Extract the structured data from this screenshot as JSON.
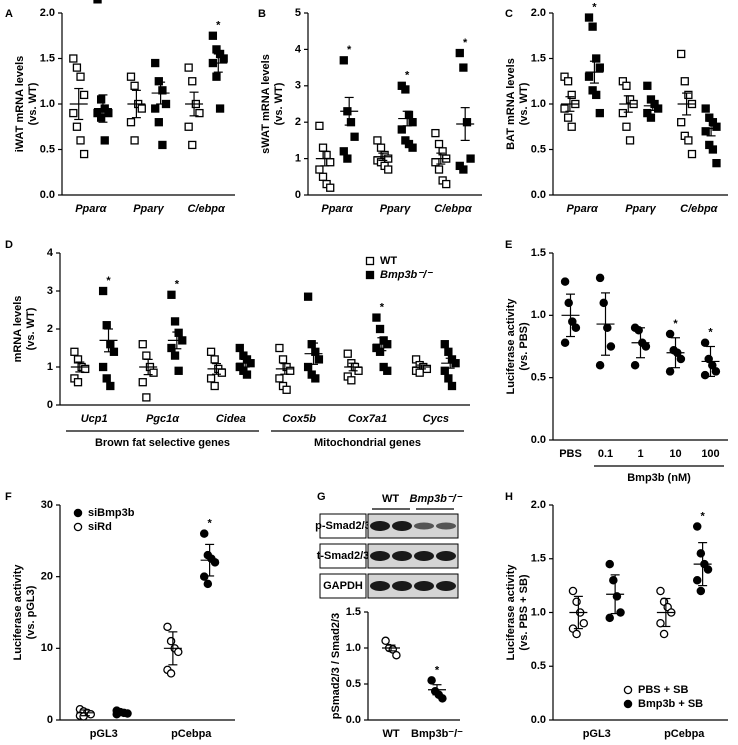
{
  "chart_data": [
    {
      "type": "dot",
      "panel": "A",
      "ylabel": "iWAT mRNA levels",
      "ylabel_sub": "(vs. WT)",
      "categories": [
        "Pparα",
        "Pparγ",
        "C/ebpα"
      ],
      "ylim": [
        0,
        2.0
      ],
      "yticks": [
        {
          "value": 0,
          "label": "0.0"
        },
        0.5,
        {
          "value": 1,
          "label": "1.0"
        },
        1.5,
        {
          "value": 2,
          "label": "2.0"
        }
      ],
      "series": [
        {
          "marker": "square-open",
          "color": "#000000",
          "values": [
            [
              1.5,
              1.4,
              1.3,
              1.1,
              0.9,
              0.75,
              0.6,
              0.45
            ],
            [
              1.3,
              1.2,
              1.0,
              0.95,
              0.8,
              0.6
            ],
            [
              1.4,
              1.25,
              1.0,
              0.9,
              0.75,
              0.55
            ]
          ],
          "means": [
            1.0,
            1.0,
            1.0
          ],
          "errors": [
            0.17,
            0.15,
            0.13
          ],
          "annotations": [
            null,
            null,
            null
          ]
        },
        {
          "marker": "square-filled",
          "color": "#000000",
          "values": [
            [
              2.15,
              1.05,
              0.95,
              0.9,
              0.9,
              0.85,
              0.6
            ],
            [
              1.45,
              1.25,
              1.15,
              1.0,
              0.95,
              0.8,
              0.55
            ],
            [
              1.75,
              1.6,
              1.55,
              1.5,
              1.45,
              1.3,
              0.95
            ]
          ],
          "means": [
            0.95,
            1.12,
            1.45
          ],
          "errors": [
            0.15,
            0.12,
            0.1
          ],
          "annotations": [
            null,
            null,
            "*"
          ]
        }
      ]
    },
    {
      "type": "dot",
      "panel": "B",
      "ylabel": "sWAT mRNA levels",
      "ylabel_sub": "(vs. WT)",
      "categories": [
        "Pparα",
        "Pparγ",
        "C/ebpα"
      ],
      "ylim": [
        0,
        5
      ],
      "yticks": [
        0,
        1,
        2,
        3,
        4,
        5
      ],
      "series": [
        {
          "marker": "square-open",
          "color": "#000000",
          "values": [
            [
              1.9,
              1.3,
              1.1,
              0.9,
              0.7,
              0.5,
              0.3,
              0.2
            ],
            [
              1.5,
              1.3,
              1.1,
              1.0,
              0.95,
              0.9,
              0.8,
              0.7
            ],
            [
              1.7,
              1.4,
              1.2,
              1.0,
              0.9,
              0.7,
              0.4,
              0.3
            ]
          ],
          "means": [
            1.0,
            1.05,
            1.0
          ],
          "errors": [
            0.2,
            0.1,
            0.15
          ],
          "annotations": [
            null,
            null,
            null
          ]
        },
        {
          "marker": "square-filled",
          "color": "#000000",
          "values": [
            [
              3.7,
              2.3,
              2.0,
              1.6,
              1.2,
              1.0
            ],
            [
              3.0,
              2.9,
              2.2,
              2.0,
              1.8,
              1.5,
              1.4,
              1.3
            ],
            [
              3.9,
              3.5,
              2.0,
              1.0,
              0.8,
              0.7
            ]
          ],
          "means": [
            2.3,
            2.1,
            1.95
          ],
          "errors": [
            0.38,
            0.2,
            0.45
          ],
          "annotations": [
            "*",
            "*",
            "*"
          ]
        }
      ]
    },
    {
      "type": "dot",
      "panel": "C",
      "ylabel": "BAT mRNA levels",
      "ylabel_sub": "(vs. WT)",
      "categories": [
        "Pparα",
        "Pparγ",
        "C/ebpα"
      ],
      "ylim": [
        0,
        2.0
      ],
      "yticks": [
        {
          "value": 0,
          "label": "0.0"
        },
        0.5,
        {
          "value": 1,
          "label": "1.0"
        },
        1.5,
        {
          "value": 2,
          "label": "2.0"
        }
      ],
      "series": [
        {
          "marker": "square-open",
          "color": "#000000",
          "values": [
            [
              1.3,
              1.25,
              1.1,
              1.0,
              0.95,
              0.85,
              0.75
            ],
            [
              1.25,
              1.2,
              1.05,
              1.0,
              0.9,
              0.75,
              0.6
            ],
            [
              1.55,
              1.25,
              1.1,
              1.0,
              0.8,
              0.65,
              0.6,
              0.45
            ]
          ],
          "means": [
            1.0,
            1.0,
            1.0
          ],
          "errors": [
            0.08,
            0.09,
            0.12
          ],
          "annotations": [
            null,
            null,
            null
          ]
        },
        {
          "marker": "square-filled",
          "color": "#000000",
          "values": [
            [
              1.95,
              1.85,
              1.5,
              1.4,
              1.3,
              1.15,
              1.1,
              0.9
            ],
            [
              1.2,
              1.05,
              1.0,
              0.95,
              0.9,
              0.85
            ],
            [
              0.95,
              0.85,
              0.8,
              0.75,
              0.7,
              0.55,
              0.5,
              0.35
            ]
          ],
          "means": [
            1.35,
            0.98,
            0.73
          ],
          "errors": [
            0.12,
            0.05,
            0.08
          ],
          "annotations": [
            "*",
            null,
            null
          ]
        }
      ]
    },
    {
      "type": "dot",
      "panel": "D",
      "ylabel": "mRNA levels",
      "ylabel_sub": "(vs. WT)",
      "categories": [
        "Ucp1",
        "Pgc1α",
        "Cidea",
        "Cox5b",
        "Cox7a1",
        "Cycs"
      ],
      "ylim": [
        0,
        4
      ],
      "yticks": [
        0,
        1,
        2,
        3,
        4
      ],
      "groups": [
        {
          "label": "Brown fat selective genes",
          "size": 3
        },
        {
          "label": "Mitochondrial genes",
          "size": 3
        }
      ],
      "legend": "upper right",
      "series": [
        {
          "name": "WT",
          "marker": "square-open",
          "color": "#000000",
          "values": [
            [
              1.4,
              1.2,
              1.0,
              0.95,
              0.7,
              0.6
            ],
            [
              1.6,
              1.3,
              1.0,
              0.85,
              0.6,
              0.2
            ],
            [
              1.4,
              1.2,
              0.95,
              0.85,
              0.7,
              0.5
            ],
            [
              1.5,
              1.2,
              1.0,
              0.9,
              0.7,
              0.5,
              0.4
            ],
            [
              1.35,
              1.1,
              1.0,
              0.9,
              0.75,
              0.65
            ],
            [
              1.2,
              1.05,
              1.0,
              0.95,
              0.9,
              0.85
            ]
          ],
          "means": [
            1.0,
            1.0,
            0.95,
            0.95,
            1.0,
            1.0
          ],
          "errors": [
            0.13,
            0.2,
            0.14,
            0.14,
            0.1,
            0.05
          ],
          "annotations": [
            null,
            null,
            null,
            null,
            null,
            null
          ]
        },
        {
          "name": "Bmp3b⁻/⁻",
          "marker": "square-filled",
          "color": "#000000",
          "values": [
            [
              3.0,
              2.1,
              1.6,
              1.4,
              1.0,
              0.7,
              0.5
            ],
            [
              2.9,
              2.2,
              1.9,
              1.7,
              1.5,
              1.3,
              0.9
            ],
            [
              1.5,
              1.3,
              1.2,
              1.1,
              1.0,
              0.9,
              0.8
            ],
            [
              2.85,
              1.6,
              1.4,
              1.2,
              1.0,
              0.8,
              0.7
            ],
            [
              2.3,
              2.0,
              1.7,
              1.6,
              1.5,
              1.4,
              1.0,
              0.9
            ],
            [
              1.6,
              1.4,
              1.2,
              1.1,
              0.9,
              0.7,
              0.5
            ]
          ],
          "means": [
            1.7,
            1.7,
            1.1,
            1.35,
            1.6,
            1.1
          ],
          "errors": [
            0.3,
            0.22,
            0.1,
            0.28,
            0.17,
            0.13
          ],
          "annotations": [
            "*",
            "*",
            null,
            null,
            "*",
            null
          ]
        }
      ]
    },
    {
      "type": "dot",
      "panel": "E",
      "ylabel": "Luciferase activity",
      "ylabel_sub": "(vs. PBS)",
      "categories": [
        "PBS",
        "0.1",
        "1",
        "10",
        "100"
      ],
      "xlabel": "Bmp3b (nM)",
      "ylim": [
        0,
        1.5
      ],
      "yticks": [
        {
          "value": 0,
          "label": "0.0"
        },
        0.5,
        {
          "value": 1,
          "label": "1.0"
        },
        1.5
      ],
      "series": [
        {
          "marker": "circle-filled",
          "color": "#000000",
          "values": [
            [
              1.27,
              1.1,
              0.95,
              0.9,
              0.78
            ],
            [
              1.3,
              1.1,
              0.9,
              0.75,
              0.6
            ],
            [
              0.9,
              0.88,
              0.78,
              0.75,
              0.6
            ],
            [
              0.85,
              0.72,
              0.7,
              0.65,
              0.55
            ],
            [
              0.78,
              0.65,
              0.6,
              0.55,
              0.52
            ]
          ],
          "means": [
            1.0,
            0.93,
            0.78,
            0.7,
            0.63
          ],
          "errors": [
            0.17,
            0.25,
            0.12,
            0.12,
            0.12
          ],
          "annotations": [
            null,
            null,
            null,
            "*",
            "*"
          ]
        }
      ]
    },
    {
      "type": "dot",
      "panel": "F",
      "ylabel": "Luciferase activity",
      "ylabel_sub": "(vs. pGL3)",
      "categories": [
        "pGL3",
        "pCebpa"
      ],
      "ylim": [
        0,
        30
      ],
      "yticks": [
        0,
        10,
        20,
        30
      ],
      "legend": "upper left",
      "series": [
        {
          "name": "siRd",
          "marker": "circle-open",
          "color": "#000000",
          "values": [
            [
              1.5,
              1.2,
              1.0,
              0.8,
              0.6,
              0.5
            ],
            [
              13,
              11,
              10,
              9.5,
              7,
              6.5
            ]
          ],
          "means": [
            1.0,
            10
          ],
          "errors": [
            0.4,
            2.3
          ],
          "annotations": [
            null,
            null
          ]
        },
        {
          "name": "siBmp3b",
          "marker": "circle-filled",
          "color": "#000000",
          "values": [
            [
              1.3,
              1.1,
              1.0,
              0.9,
              0.8
            ],
            [
              26,
              23,
              22.5,
              22,
              20,
              19
            ]
          ],
          "means": [
            1.0,
            22.3
          ],
          "errors": [
            0.2,
            2.2
          ],
          "annotations": [
            null,
            "*"
          ]
        }
      ]
    },
    {
      "type": "dot",
      "panel": "G",
      "ylabel": "pSmad2/3 / Smad2/3",
      "blot": {
        "columns": [
          "WT",
          "Bmp3b⁻/⁻"
        ],
        "rows": [
          "p-Smad2/3",
          "t-Smad2/3",
          "GAPDH"
        ]
      },
      "categories": [
        "WT",
        "Bmp3b⁻/⁻"
      ],
      "ylim": [
        0,
        1.5
      ],
      "yticks": [
        {
          "value": 0,
          "label": "0.0"
        },
        0.5,
        {
          "value": 1,
          "label": "1.0"
        },
        1.5
      ],
      "series": [
        {
          "markers": [
            "circle-open",
            "circle-filled"
          ],
          "color": "#000000",
          "values": [
            [
              1.1,
              1.0,
              0.98,
              0.9
            ],
            [
              0.55,
              0.4,
              0.35,
              0.3
            ]
          ],
          "means": [
            1.0,
            0.42
          ],
          "errors": [
            0.04,
            0.07
          ],
          "annotations": [
            null,
            "*"
          ]
        }
      ]
    },
    {
      "type": "dot",
      "panel": "H",
      "ylabel": "Luciferase activity",
      "ylabel_sub": "(vs. PBS + SB)",
      "categories": [
        "pGL3",
        "pCebpa"
      ],
      "ylim": [
        0,
        2.0
      ],
      "legend": "lower right",
      "yticks": [
        {
          "value": 0,
          "label": "0.0"
        },
        0.5,
        {
          "value": 1,
          "label": "1.0"
        },
        1.5,
        {
          "value": 2,
          "label": "2.0"
        }
      ],
      "series": [
        {
          "name": "PBS + SB",
          "marker": "circle-open",
          "color": "#000000",
          "values": [
            [
              1.2,
              1.1,
              1.0,
              0.9,
              0.85,
              0.8
            ],
            [
              1.2,
              1.1,
              1.05,
              1.0,
              0.9,
              0.8
            ]
          ],
          "means": [
            1.0,
            1.0
          ],
          "errors": [
            0.15,
            0.13
          ],
          "annotations": [
            null,
            null
          ]
        },
        {
          "name": "Bmp3b + SB",
          "marker": "circle-filled",
          "color": "#000000",
          "values": [
            [
              1.45,
              1.3,
              1.15,
              1.0,
              0.95
            ],
            [
              1.8,
              1.55,
              1.45,
              1.4,
              1.3,
              1.2
            ]
          ],
          "means": [
            1.17,
            1.45
          ],
          "errors": [
            0.18,
            0.2
          ],
          "annotations": [
            null,
            "*"
          ]
        }
      ]
    }
  ]
}
